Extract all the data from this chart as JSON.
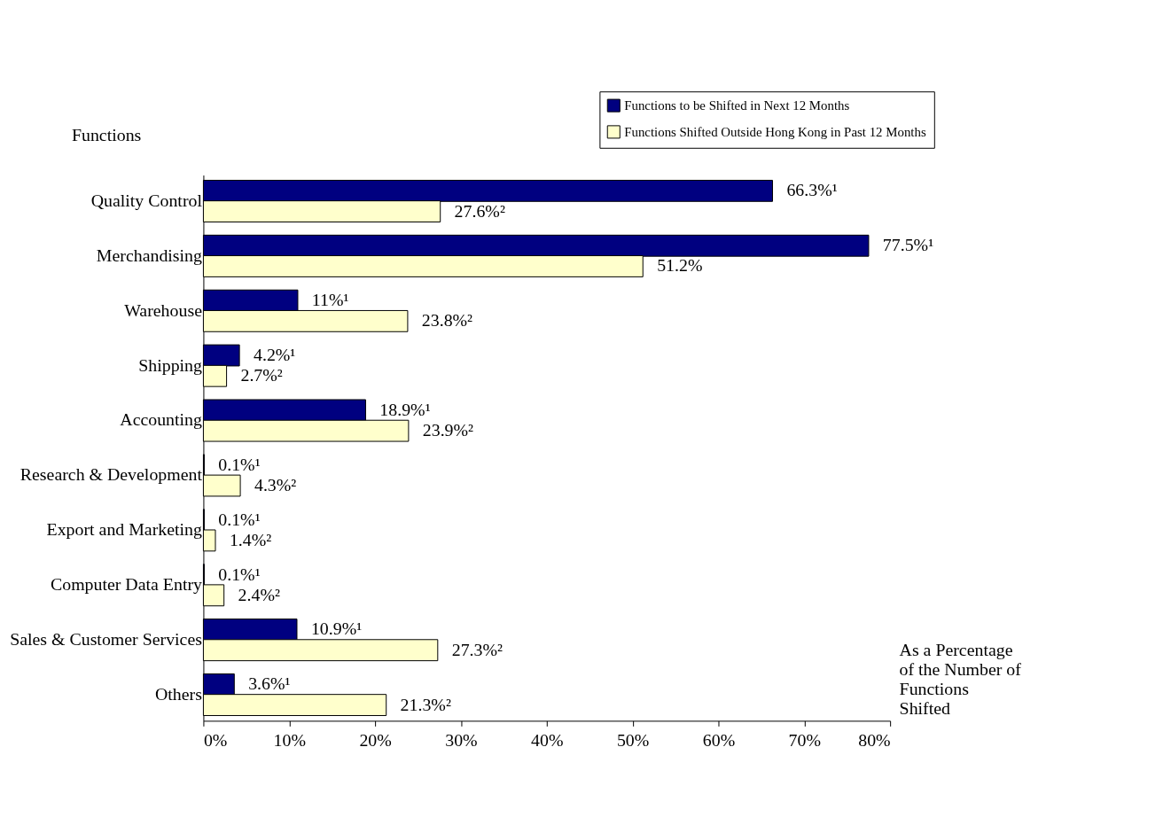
{
  "chart_data": {
    "type": "bar",
    "orientation": "horizontal",
    "ylabel": "Functions",
    "xlabel": "As a Percentage of the Number of Functions Shifted",
    "categories": [
      "Quality Control",
      "Merchandising",
      "Warehouse",
      "Shipping",
      "Accounting",
      "Research & Development",
      "Export and Marketing",
      "Computer Data Entry",
      "Sales & Customer Services",
      "Others"
    ],
    "series": [
      {
        "name": "Functions to be Shifted in Next 12 Months",
        "color": "#000080",
        "values": [
          66.3,
          77.5,
          11,
          4.2,
          18.9,
          0.1,
          0.1,
          0.1,
          10.9,
          3.6
        ],
        "value_labels": [
          "66.3%¹",
          "77.5%¹",
          "11%¹",
          "4.2%¹",
          "18.9%¹",
          "0.1%¹",
          "0.1%¹",
          "0.1%¹",
          "10.9%¹",
          "3.6%¹"
        ]
      },
      {
        "name": "Functions Shifted Outside Hong Kong in Past 12 Months",
        "color": "#ffffcc",
        "values": [
          27.6,
          51.2,
          23.8,
          2.7,
          23.9,
          4.3,
          1.4,
          2.4,
          27.3,
          21.3
        ],
        "value_labels": [
          "27.6%²",
          "51.2%",
          "23.8%²",
          "2.7%²",
          "23.9%²",
          "4.3%²",
          "1.4%²",
          "2.4%²",
          "27.3%²",
          "21.3%²"
        ]
      }
    ],
    "xlim": [
      0,
      80
    ],
    "xticks": [
      {
        "value": 0,
        "label": "0%"
      },
      {
        "value": 10,
        "label": "10%"
      },
      {
        "value": 20,
        "label": "20%"
      },
      {
        "value": 30,
        "label": "30%"
      },
      {
        "value": 40,
        "label": "40%"
      },
      {
        "value": 50,
        "label": "50%"
      },
      {
        "value": 60,
        "label": "60%"
      },
      {
        "value": 70,
        "label": "70%"
      },
      {
        "value": 80,
        "label": "80%"
      }
    ],
    "grid": false,
    "legend": "top right"
  }
}
